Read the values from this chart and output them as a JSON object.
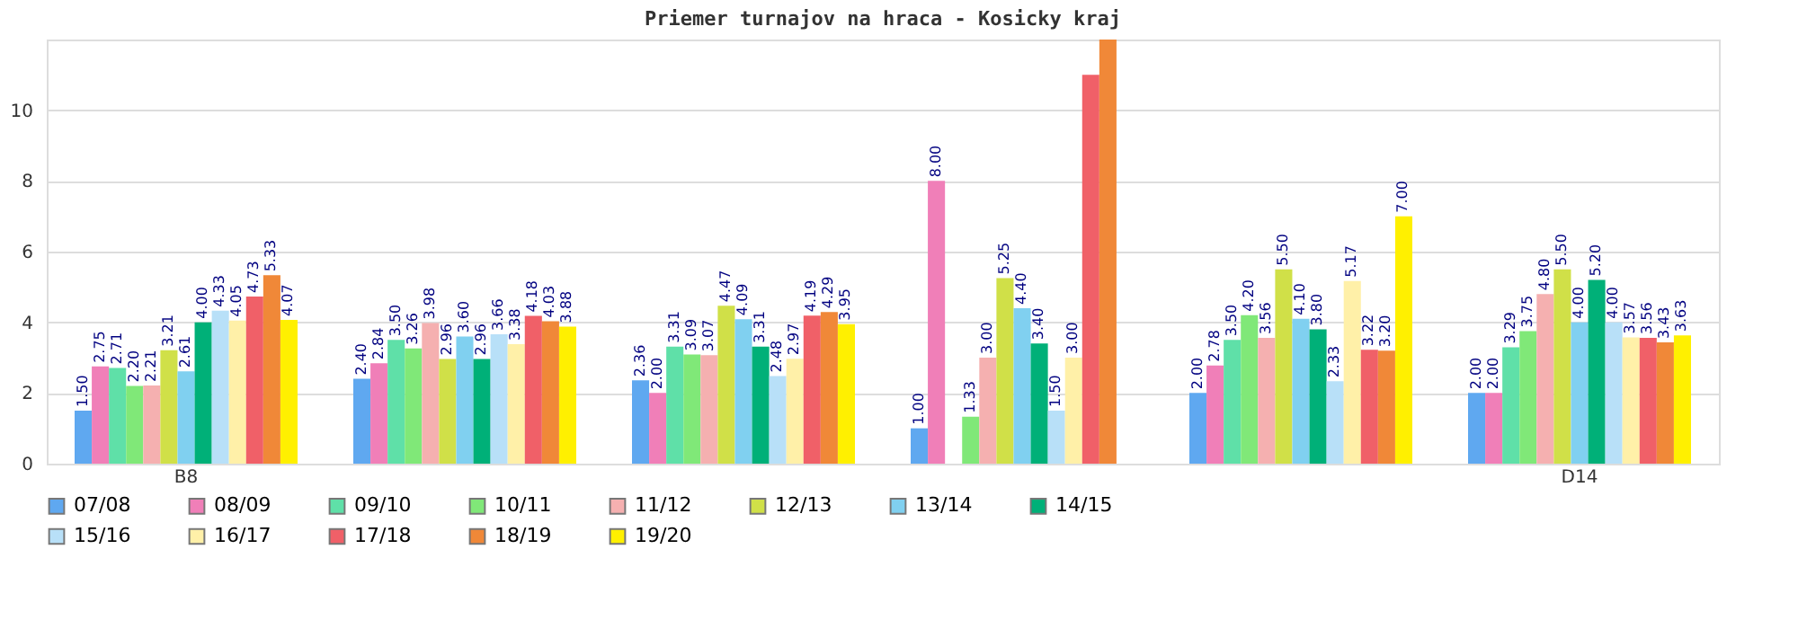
{
  "chart_data": {
    "type": "bar",
    "title": "Priemer turnajov na hraca - Kosicky kraj",
    "categories": [
      "B8",
      null,
      null,
      null,
      null,
      "D14"
    ],
    "ylim": [
      0,
      12
    ],
    "yticks": [
      0,
      2,
      4,
      6,
      8,
      10
    ],
    "grid": "y",
    "legend": "bottom",
    "series": [
      {
        "name": "07/08",
        "color": "#5fa8f0",
        "values": [
          1.5,
          2.4,
          2.36,
          1.0,
          2.0,
          2.0
        ],
        "value_labels": [
          "1.50",
          "2.40",
          "2.36",
          "1.00",
          "2.00",
          "2.00"
        ]
      },
      {
        "name": "08/09",
        "color": "#f07fb8",
        "values": [
          2.75,
          2.84,
          2.0,
          8.0,
          2.78,
          2.0
        ],
        "value_labels": [
          "2.75",
          "2.84",
          "2.00",
          "8.00",
          "2.78",
          "2.00"
        ]
      },
      {
        "name": "09/10",
        "color": "#5fe0a8",
        "values": [
          2.71,
          3.5,
          3.31,
          null,
          3.5,
          3.29
        ],
        "value_labels": [
          "2.71",
          "3.50",
          "3.31",
          null,
          "3.50",
          "3.29"
        ]
      },
      {
        "name": "10/11",
        "color": "#80e878",
        "values": [
          2.2,
          3.26,
          3.09,
          1.33,
          4.2,
          3.75
        ],
        "value_labels": [
          "2.20",
          "3.26",
          "3.09",
          "1.33",
          "4.20",
          "3.75"
        ]
      },
      {
        "name": "11/12",
        "color": "#f5b0b0",
        "values": [
          2.21,
          3.98,
          3.07,
          3.0,
          3.56,
          4.8
        ],
        "value_labels": [
          "2.21",
          "3.98",
          "3.07",
          "3.00",
          "3.56",
          "4.80"
        ]
      },
      {
        "name": "12/13",
        "color": "#d0e048",
        "values": [
          3.21,
          2.96,
          4.47,
          5.25,
          5.5,
          5.5
        ],
        "value_labels": [
          "3.21",
          "2.96",
          "4.47",
          "5.25",
          "5.50",
          "5.50"
        ]
      },
      {
        "name": "13/14",
        "color": "#80d0f0",
        "values": [
          2.61,
          3.6,
          4.09,
          4.4,
          4.1,
          4.0
        ],
        "value_labels": [
          "2.61",
          "3.60",
          "4.09",
          "4.40",
          "4.10",
          "4.00"
        ]
      },
      {
        "name": "14/15",
        "color": "#00b078",
        "values": [
          4.0,
          2.96,
          3.31,
          3.4,
          3.8,
          5.2
        ],
        "value_labels": [
          "4.00",
          "2.96",
          "3.31",
          "3.40",
          "3.80",
          "5.20"
        ]
      },
      {
        "name": "15/16",
        "color": "#b8e0f8",
        "values": [
          4.33,
          3.66,
          2.48,
          1.5,
          2.33,
          4.0
        ],
        "value_labels": [
          "4.33",
          "3.66",
          "2.48",
          "1.50",
          "2.33",
          "4.00"
        ]
      },
      {
        "name": "16/17",
        "color": "#fff0a8",
        "values": [
          4.05,
          3.38,
          2.97,
          3.0,
          5.17,
          3.57
        ],
        "value_labels": [
          "4.05",
          "3.38",
          "2.97",
          "3.00",
          "5.17",
          "3.57"
        ]
      },
      {
        "name": "17/18",
        "color": "#f06068",
        "values": [
          4.73,
          4.18,
          4.19,
          11.0,
          3.22,
          3.56
        ],
        "value_labels": [
          "4.73",
          "4.18",
          "4.19",
          null,
          "3.22",
          "3.56"
        ]
      },
      {
        "name": "18/19",
        "color": "#f08838",
        "values": [
          5.33,
          4.03,
          4.29,
          12.0,
          3.2,
          3.43
        ],
        "value_labels": [
          "5.33",
          "4.03",
          "4.29",
          null,
          "3.20",
          "3.43"
        ]
      },
      {
        "name": "19/20",
        "color": "#fff000",
        "values": [
          4.07,
          3.88,
          3.95,
          null,
          7.0,
          3.63
        ],
        "value_labels": [
          "4.07",
          "3.88",
          "3.95",
          null,
          "7.00",
          "3.63"
        ]
      }
    ]
  }
}
